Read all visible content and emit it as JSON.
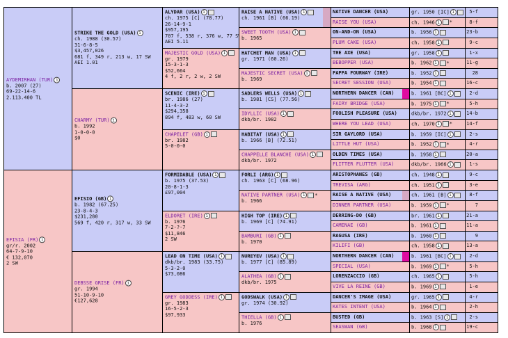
{
  "g1": [
    {
      "name": "AYDEMIRHAN (TUR)",
      "lines": [
        "b. 2007 (27)",
        "69-22-14-6",
        "2.113.400 TL"
      ],
      "sex": "m"
    },
    {
      "name": "EFISIA (FR)",
      "lines": [
        "gr/r. 2002",
        "64-7-9-10",
        "€ 132,070",
        "2 SW"
      ],
      "sex": "f"
    }
  ],
  "g2": [
    {
      "name": "STRIKE THE GOLD (USA)",
      "lines": [
        "ch. 1988 (30.57)",
        "31-6-8-5",
        "$3,457,026",
        "681 f, 349 r, 213 w, 17 SW",
        "AEI 1.01"
      ],
      "sex": "m"
    },
    {
      "name": "CHARMY (TUR)",
      "lines": [
        "b. 1992",
        "1-0-0-0",
        "$0"
      ],
      "sex": "f"
    },
    {
      "name": "EFISIO (GB)",
      "lines": [
        "b. 1982 (67.25)",
        "23-8-4-3",
        "$231,280",
        "569 f, 420 r, 317 w, 33 SW"
      ],
      "sex": "m"
    },
    {
      "name": "DEBSSE GRISE (FR)",
      "lines": [
        "gr. 1994",
        "51-10-9-10",
        "€127,628"
      ],
      "sex": "f"
    }
  ],
  "g3": [
    {
      "name": "ALYDAR (USA)",
      "lines": [
        "ch. 1975 [C] (78.77)",
        "26-14-9-1",
        "$957,195",
        "707 f, 538 r, 376 w, 77 SW",
        "AEI 5.11"
      ],
      "sex": "m"
    },
    {
      "name": "MAJESTIC GOLD (USA)",
      "lines": [
        "gr. 1979",
        "15-3-1-3",
        "$52,664",
        "4 f, 2 r, 2 w, 2 SW"
      ],
      "sex": "f"
    },
    {
      "name": "SCENIC (IRE)",
      "lines": [
        "br. 1986 (27)",
        "11-4-3-2",
        "$294,358",
        "894 f, 483 w, 60 SW"
      ],
      "sex": "m"
    },
    {
      "name": "CHAPELET (GB)",
      "lines": [
        "br. 1982",
        "5-0-0-0"
      ],
      "sex": "f"
    },
    {
      "name": "FORMIDABLE (USA)",
      "lines": [
        "b. 1975 (37.53)",
        "20-8-1-3",
        "£97,004"
      ],
      "sex": "m"
    },
    {
      "name": "ELDORET (IRE)",
      "lines": [
        "b. 1976",
        "7-2-?-7",
        "$11,846",
        "2 SW"
      ],
      "sex": "f"
    },
    {
      "name": "LEAD ON TIME (USA)",
      "lines": [
        "dkb/br. 1983 (33.75)",
        "5-3-2-0",
        "$73,086"
      ],
      "sex": "m"
    },
    {
      "name": "GREY GODDESS (IRE)",
      "lines": [
        "gr. 1983",
        "16-5-2-3",
        "$97,933"
      ],
      "sex": "f"
    }
  ],
  "g4": [
    {
      "name": "RAISE A NATIVE (USA)",
      "line": "ch. 1961 [B] (66.19)",
      "sex": "m"
    },
    {
      "name": "SWEET TOOTH (USA)",
      "line": "b. 1965",
      "sex": "f"
    },
    {
      "name": "HATCHET MAN (USA)",
      "line": "gr. 1971 (60.26)",
      "sex": "m"
    },
    {
      "name": "MAJESTIC SECRET (USA)",
      "line": "b. 1969",
      "sex": "f"
    },
    {
      "name": "SADLERS WELLS (USA)",
      "line": "b. 1981 [CS] (77.56)",
      "sex": "m"
    },
    {
      "name": "IDYLLIC (USA)",
      "line": "dkb/br. 1982",
      "sex": "f"
    },
    {
      "name": "HABITAT (USA)",
      "line": "b. 1966 [B] (72.51)",
      "sex": "m"
    },
    {
      "name": "CHAPPELLE BLANCHE (USA)",
      "line": "dkb/br. 1972",
      "sex": "f"
    },
    {
      "name": "FORLI (ARG)",
      "line": "ch. 1963 [C] (68.96)",
      "sex": "m"
    },
    {
      "name": "NATIVE PARTNER (USA)",
      "line": "b. 1966",
      "sex": "f"
    },
    {
      "name": "HIGH TOP (IRE)",
      "line": "b. 1969 [C] (74.91)",
      "sex": "m"
    },
    {
      "name": "BAMBURI (GB)",
      "line": "b. 1970",
      "sex": "f"
    },
    {
      "name": "NUREYEV (USA)",
      "line": "b. 1977 [C] (85.89)",
      "sex": "m"
    },
    {
      "name": "ALATHEA (GB)",
      "line": "dkb/br. 1975",
      "sex": "f"
    },
    {
      "name": "GODSWALK (USA)",
      "line": "gr. 1974 (30.92)",
      "sex": "m"
    },
    {
      "name": "THIELLA (GB)",
      "line": "b. 1976",
      "sex": "f"
    }
  ],
  "g5": [
    {
      "name": "NATIVE DANCER (USA)",
      "year": "gr. 1950 [IC]",
      "count": "5-f",
      "sex": "m"
    },
    {
      "name": "RAISE YOU (USA)",
      "year": "ch. 1946",
      "count": "8-f",
      "sex": "f"
    },
    {
      "name": "ON-AND-ON (USA)",
      "year": "b. 1956",
      "count": "23-b",
      "sex": "m"
    },
    {
      "name": "PLUM CAKE (USA)",
      "year": "ch. 1958",
      "count": "9-c",
      "sex": "f"
    },
    {
      "name": "THE AXE (USA)",
      "year": "gr. 1958",
      "count": "1-x",
      "sex": "m"
    },
    {
      "name": "BEBOPPER (USA)",
      "year": "b. 1962",
      "count": "11-g",
      "sex": "f"
    },
    {
      "name": "PAPPA FOURWAY (IRE)",
      "year": "b. 1952",
      "count": "28",
      "sex": "m"
    },
    {
      "name": "SECRET SESSION (USA)",
      "year": "b. 1954",
      "count": "16-c",
      "sex": "f"
    },
    {
      "name": "NORTHERN DANCER (CAN)",
      "year": "b. 1961 [BC]",
      "count": "2-d",
      "sex": "m"
    },
    {
      "name": "FAIRY BRIDGE (USA)",
      "year": "b. 1975",
      "count": "5-h",
      "sex": "f"
    },
    {
      "name": "FOOLISH PLEASURE (USA)",
      "year": "dkb/br. 1972",
      "count": "14-b",
      "sex": "m"
    },
    {
      "name": "WHERE YOU LEAD (USA)",
      "year": "ch. 1970",
      "count": "14-f",
      "sex": "f"
    },
    {
      "name": "SIR GAYLORD (USA)",
      "year": "b. 1959 [IC]",
      "count": "2-s",
      "sex": "m"
    },
    {
      "name": "LITTLE HUT (USA)",
      "year": "b. 1952",
      "count": "4-r",
      "sex": "f"
    },
    {
      "name": "OLDEN TIMES (USA)",
      "year": "b. 1958",
      "count": "20-a",
      "sex": "m"
    },
    {
      "name": "FLITTER FLUTTER (USA)",
      "year": "dkb/br. 1966",
      "count": "1-s",
      "sex": "f"
    },
    {
      "name": "ARISTOPHANES (GB)",
      "year": "ch. 1948",
      "count": "9-c",
      "sex": "m"
    },
    {
      "name": "TREVISA (ARG)",
      "year": "ch. 1951",
      "count": "3-e",
      "sex": "f"
    },
    {
      "name": "RAISE A NATIVE (USA)",
      "year": "ch. 1961 [B]",
      "count": "8-f",
      "sex": "m"
    },
    {
      "name": "DINNER PARTNER (USA)",
      "year": "b. 1959",
      "count": "7",
      "sex": "f"
    },
    {
      "name": "DERRING-DO (GB)",
      "year": "br. 1961",
      "count": "21-a",
      "sex": "m"
    },
    {
      "name": "CAMENAE (GB)",
      "year": "b. 1961",
      "count": "11-a",
      "sex": "f"
    },
    {
      "name": "RAGUSA (IRE)",
      "year": "b. 1960",
      "count": "9",
      "sex": "m"
    },
    {
      "name": "KILIFI (GB)",
      "year": "ch. 1958",
      "count": "13-a",
      "sex": "f"
    },
    {
      "name": "NORTHERN DANCER (CAN)",
      "year": "b. 1961 [BC]",
      "count": "2-d",
      "sex": "m"
    },
    {
      "name": "SPECIAL (USA)",
      "year": "b. 1969",
      "count": "5-h",
      "sex": "f"
    },
    {
      "name": "LORENZACCIO (GB)",
      "year": "ch. 1965",
      "count": "5-h",
      "sex": "m"
    },
    {
      "name": "VIVE LA REINE (GB)",
      "year": "b. 1969",
      "count": "1-e",
      "sex": "f"
    },
    {
      "name": "DANCER'S IMAGE (USA)",
      "year": "gr. 1965",
      "count": "4-r",
      "sex": "m"
    },
    {
      "name": "KATES INTENT (USA)",
      "year": "b. 1964",
      "count": "2-h",
      "sex": "f"
    },
    {
      "name": "BUSTED (GB)",
      "year": "b. 1963 [S]",
      "count": "2-s",
      "sex": "m"
    },
    {
      "name": "SEASWAN (GB)",
      "year": "b. 1968",
      "count": "19-c",
      "sex": "f"
    }
  ],
  "colors": {
    "male": "#c9ccf7",
    "female": "#f7c6c6",
    "link": "#7a1fa2",
    "highlight": "#e00ca0"
  }
}
